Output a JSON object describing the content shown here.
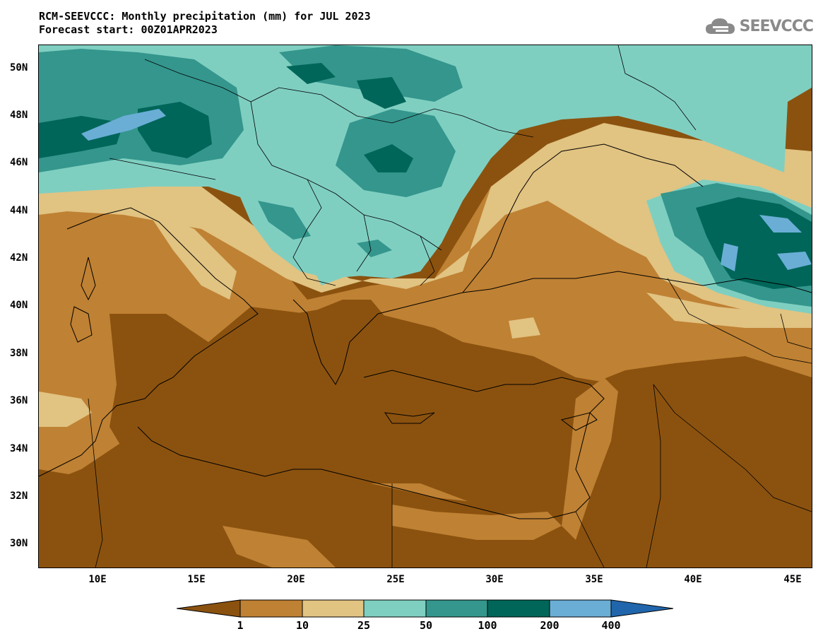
{
  "title": {
    "line1": "RCM-SEEVCCC: Monthly precipitation (mm) for JUL 2023",
    "line2": "Forecast start: 00Z01APR2023"
  },
  "logo": {
    "text": "SEEVCCC",
    "icon": "cloud-icon"
  },
  "map": {
    "lat_labels": [
      "50N",
      "48N",
      "46N",
      "44N",
      "42N",
      "40N",
      "38N",
      "36N",
      "34N",
      "32N",
      "30N"
    ],
    "lon_labels": [
      "10E",
      "15E",
      "20E",
      "25E",
      "30E",
      "35E",
      "40E",
      "45E"
    ]
  },
  "legend": {
    "labels": [
      "1",
      "10",
      "25",
      "50",
      "100",
      "200",
      "400"
    ],
    "colors": [
      "#8B520F",
      "#BF8133",
      "#E1C382",
      "#7FCFC1",
      "#34968D",
      "#006659",
      "#6AAED6",
      "#2166AC"
    ]
  }
}
